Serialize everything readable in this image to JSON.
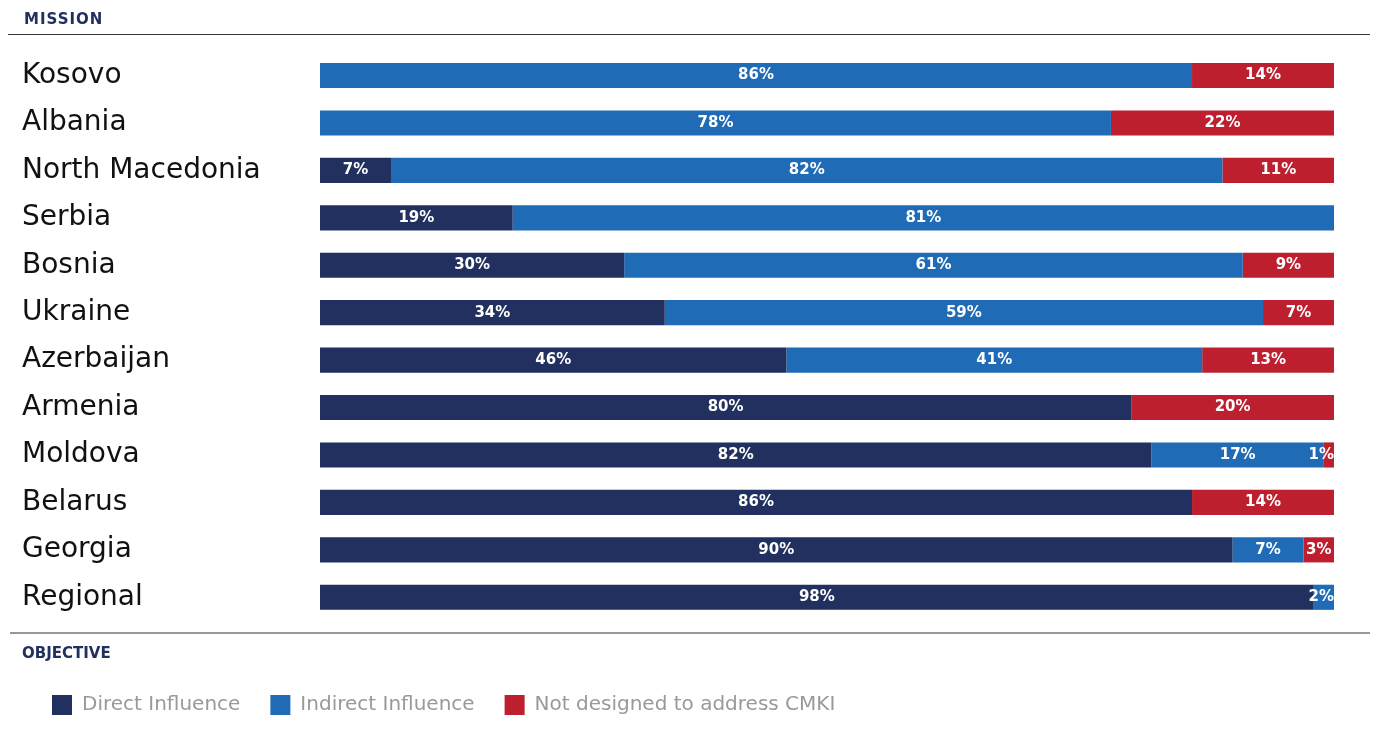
{
  "chart_data": {
    "type": "bar",
    "orientation": "horizontal",
    "stacked": true,
    "ylabel": "MISSION",
    "legend_title": "OBJECTIVE",
    "legend": "bottom left",
    "tick_labels": "y",
    "xlim": [
      0,
      100
    ],
    "categories": [
      "Kosovo",
      "Albania",
      "North Macedonia",
      "Serbia",
      "Bosnia",
      "Ukraine",
      "Azerbaijan",
      "Armenia",
      "Moldova",
      "Belarus",
      "Georgia",
      "Regional"
    ],
    "series": [
      {
        "name": "Direct Influence",
        "color": "#21305f",
        "values": [
          0,
          0,
          7,
          19,
          30,
          34,
          46,
          80,
          82,
          86,
          90,
          98
        ],
        "value_labels": [
          null,
          null,
          "7%",
          "19%",
          "30%",
          "34%",
          "46%",
          "80%",
          "82%",
          "86%",
          "90%",
          "98%"
        ]
      },
      {
        "name": "Indirect Influence",
        "color": "#1f6bb5",
        "values": [
          86,
          78,
          82,
          81,
          61,
          59,
          41,
          0,
          17,
          0,
          7,
          2
        ],
        "value_labels": [
          "86%",
          "78%",
          "82%",
          "81%",
          "61%",
          "59%",
          "41%",
          null,
          "17%",
          null,
          "7%",
          "2%"
        ]
      },
      {
        "name": "Not designed to address CMKI",
        "color": "#bd1f2f",
        "values": [
          14,
          22,
          11,
          0,
          9,
          7,
          13,
          20,
          1,
          14,
          3,
          0
        ],
        "value_labels": [
          "14%",
          "22%",
          "11%",
          null,
          "9%",
          "7%",
          "13%",
          "20%",
          "1%",
          "14%",
          "3%",
          null
        ]
      }
    ]
  }
}
